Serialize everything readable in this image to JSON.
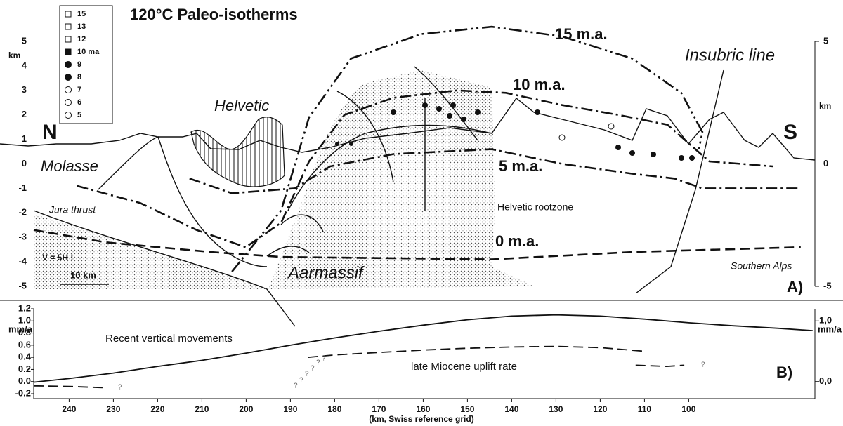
{
  "chart_data": [
    {
      "type": "line",
      "title": "120°C Paleo-isotherms",
      "xlim": [
        248,
        72
      ],
      "ylim": [
        -5,
        5
      ],
      "yticks": [
        -5,
        -4,
        -3,
        -2,
        -1,
        0,
        1,
        2,
        3,
        4,
        5
      ],
      "y2ticks": [
        5,
        0,
        -5
      ],
      "y_label": "km",
      "color": "#111111",
      "legend": [
        "15",
        "13",
        "12",
        "10 ma",
        "9",
        "8",
        "7",
        "6",
        "5"
      ],
      "annotations": [
        "N",
        "S",
        "Molasse",
        "Helvetic",
        "Jura thrust",
        "V = 5H !",
        "10 km",
        "Aarmassif",
        "Helvetic rootzone",
        "Southern Alps",
        "Insubric line",
        "A)"
      ],
      "series": [
        {
          "name": "15 m.a.",
          "style": "dashdotdot",
          "x": [
            203.2,
            192.1,
            185.8,
            176.3,
            160.4,
            144.5,
            128.6,
            112.8,
            101.7,
            96.9,
            97.7
          ],
          "values": [
            -4.4,
            -1.9,
            1.9,
            4.3,
            5.3,
            5.6,
            5.2,
            4.3,
            2.9,
            1.3,
            0.6
          ]
        },
        {
          "name": "10 m.a.",
          "style": "dashdot",
          "x": [
            238.2,
            223.9,
            211.2,
            200.1,
            192.1,
            185.8,
            177.8,
            166.7,
            152.4,
            141.3,
            128.6,
            115.9,
            104.8,
            98.5,
            95.3,
            81.0
          ],
          "values": [
            -0.9,
            -1.6,
            -2.7,
            -3.4,
            -2.4,
            0.1,
            2.0,
            2.7,
            3.0,
            2.9,
            2.4,
            2.0,
            1.6,
            0.6,
            0.1,
            -0.1
          ]
        },
        {
          "name": "5 m.a.",
          "style": "dashdot",
          "x": [
            212.8,
            203.2,
            189.0,
            181.0,
            166.7,
            144.5,
            128.6,
            112.8,
            103.2,
            96.9,
            74.7
          ],
          "values": [
            -0.6,
            -1.2,
            -1.0,
            -0.1,
            0.4,
            0.6,
            0.0,
            -0.4,
            -0.6,
            -1.0,
            -1.0
          ]
        },
        {
          "name": "0 m.a.",
          "style": "dashed",
          "x": [
            248,
            231.8,
            208.0,
            192.1,
            144.5,
            112.8,
            74.7
          ],
          "values": [
            -2.7,
            -3.2,
            -3.6,
            -3.8,
            -3.9,
            -3.6,
            -3.4
          ]
        }
      ]
    },
    {
      "type": "line",
      "xlim": [
        248,
        72
      ],
      "ylim": [
        -0.2,
        1.2
      ],
      "xticks": [
        240,
        230,
        220,
        210,
        200,
        190,
        180,
        170,
        160,
        150,
        140,
        130,
        120,
        110,
        100
      ],
      "x_label": "(km, Swiss reference grid)",
      "yticks": [
        -0.2,
        {
          "value": 0.0,
          "label": "0.0"
        },
        0.2,
        0.4,
        0.6,
        0.8,
        {
          "value": 1.0,
          "label": "1.0"
        },
        1.2
      ],
      "y2ticks": [
        {
          "value": 0.0,
          "label": "0,0"
        },
        {
          "value": 1.0,
          "label": "1,0"
        }
      ],
      "y_label": "mm/a",
      "panel_label": "B)",
      "question_mark": "?",
      "series": [
        {
          "name": "Recent vertical movements",
          "style": "solid",
          "color": "#111111",
          "x": [
            248,
            240,
            230,
            220,
            210,
            200,
            190,
            180,
            170,
            160,
            150,
            140,
            130,
            120,
            110,
            100,
            90,
            80,
            72
          ],
          "values": [
            -0.01,
            0.05,
            0.14,
            0.25,
            0.35,
            0.47,
            0.6,
            0.72,
            0.83,
            0.93,
            1.02,
            1.08,
            1.1,
            1.08,
            1.03,
            0.97,
            0.92,
            0.88,
            0.84
          ]
        },
        {
          "name": "late Miocene uplift rate",
          "style": "dashed",
          "color": "#111111",
          "x": [
            248,
            240,
            232,
            215,
            186,
            180,
            170,
            160,
            150,
            140,
            130,
            120,
            110,
            108,
            112,
            105,
            101
          ],
          "values": [
            -0.07,
            -0.08,
            -0.1,
            null,
            0.4,
            0.44,
            0.48,
            0.52,
            0.55,
            0.57,
            0.58,
            0.56,
            0.5,
            null,
            0.27,
            0.25,
            0.27
          ]
        }
      ]
    }
  ]
}
